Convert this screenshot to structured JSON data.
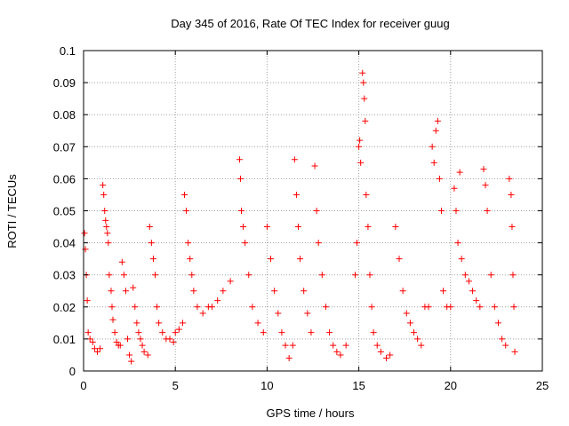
{
  "chart_data": {
    "type": "scatter",
    "title": "Day 345 of 2016, Rate Of TEC Index for receiver guug",
    "xlabel": "GPS time / hours",
    "ylabel": "ROTI / TECUs",
    "xlim": [
      0,
      25
    ],
    "ylim": [
      0,
      0.1
    ],
    "xticks": [
      0,
      5,
      10,
      15,
      20,
      25
    ],
    "yticks": [
      0,
      0.01,
      0.02,
      0.03,
      0.04,
      0.05,
      0.06,
      0.07,
      0.08,
      0.09,
      0.1
    ],
    "grid": true,
    "marker": "plus",
    "color": "#ff0000",
    "series": [
      {
        "points": [
          [
            0.05,
            0.043
          ],
          [
            0.1,
            0.038
          ],
          [
            0.15,
            0.03
          ],
          [
            0.2,
            0.022
          ],
          [
            0.25,
            0.012
          ],
          [
            0.35,
            0.01
          ],
          [
            0.5,
            0.009
          ],
          [
            0.6,
            0.007
          ],
          [
            0.75,
            0.006
          ],
          [
            0.9,
            0.007
          ],
          [
            1.05,
            0.058
          ],
          [
            1.1,
            0.055
          ],
          [
            1.15,
            0.05
          ],
          [
            1.2,
            0.047
          ],
          [
            1.25,
            0.045
          ],
          [
            1.3,
            0.043
          ],
          [
            1.35,
            0.04
          ],
          [
            1.4,
            0.03
          ],
          [
            1.5,
            0.025
          ],
          [
            1.55,
            0.02
          ],
          [
            1.6,
            0.016
          ],
          [
            1.7,
            0.012
          ],
          [
            1.8,
            0.009
          ],
          [
            1.9,
            0.008
          ],
          [
            2.0,
            0.008
          ],
          [
            2.1,
            0.034
          ],
          [
            2.2,
            0.03
          ],
          [
            2.3,
            0.025
          ],
          [
            2.4,
            0.01
          ],
          [
            2.5,
            0.005
          ],
          [
            2.6,
            0.003
          ],
          [
            2.7,
            0.026
          ],
          [
            2.8,
            0.02
          ],
          [
            2.9,
            0.015
          ],
          [
            3.0,
            0.012
          ],
          [
            3.1,
            0.01
          ],
          [
            3.2,
            0.008
          ],
          [
            3.3,
            0.006
          ],
          [
            3.5,
            0.005
          ],
          [
            3.6,
            0.045
          ],
          [
            3.7,
            0.04
          ],
          [
            3.8,
            0.035
          ],
          [
            3.9,
            0.03
          ],
          [
            4.0,
            0.02
          ],
          [
            4.1,
            0.015
          ],
          [
            4.3,
            0.012
          ],
          [
            4.5,
            0.01
          ],
          [
            4.7,
            0.01
          ],
          [
            4.9,
            0.009
          ],
          [
            5.0,
            0.012
          ],
          [
            5.2,
            0.013
          ],
          [
            5.4,
            0.015
          ],
          [
            5.5,
            0.055
          ],
          [
            5.6,
            0.05
          ],
          [
            5.7,
            0.04
          ],
          [
            5.8,
            0.035
          ],
          [
            5.9,
            0.03
          ],
          [
            6.0,
            0.025
          ],
          [
            6.2,
            0.02
          ],
          [
            6.5,
            0.018
          ],
          [
            6.8,
            0.02
          ],
          [
            7.0,
            0.02
          ],
          [
            7.3,
            0.022
          ],
          [
            7.6,
            0.025
          ],
          [
            8.0,
            0.028
          ],
          [
            8.5,
            0.066
          ],
          [
            8.55,
            0.06
          ],
          [
            8.6,
            0.05
          ],
          [
            8.7,
            0.045
          ],
          [
            8.8,
            0.04
          ],
          [
            9.0,
            0.03
          ],
          [
            9.2,
            0.02
          ],
          [
            9.5,
            0.015
          ],
          [
            9.8,
            0.012
          ],
          [
            10.0,
            0.045
          ],
          [
            10.2,
            0.035
          ],
          [
            10.4,
            0.025
          ],
          [
            10.6,
            0.018
          ],
          [
            10.8,
            0.012
          ],
          [
            11.0,
            0.008
          ],
          [
            11.2,
            0.004
          ],
          [
            11.4,
            0.008
          ],
          [
            11.5,
            0.066
          ],
          [
            11.6,
            0.055
          ],
          [
            11.7,
            0.045
          ],
          [
            11.8,
            0.035
          ],
          [
            12.0,
            0.025
          ],
          [
            12.2,
            0.018
          ],
          [
            12.4,
            0.012
          ],
          [
            12.6,
            0.064
          ],
          [
            12.7,
            0.05
          ],
          [
            12.8,
            0.04
          ],
          [
            13.0,
            0.03
          ],
          [
            13.2,
            0.02
          ],
          [
            13.4,
            0.012
          ],
          [
            13.6,
            0.008
          ],
          [
            13.8,
            0.006
          ],
          [
            14.0,
            0.005
          ],
          [
            14.3,
            0.008
          ],
          [
            14.8,
            0.03
          ],
          [
            14.9,
            0.04
          ],
          [
            15.0,
            0.07
          ],
          [
            15.05,
            0.072
          ],
          [
            15.1,
            0.065
          ],
          [
            15.2,
            0.093
          ],
          [
            15.25,
            0.09
          ],
          [
            15.3,
            0.085
          ],
          [
            15.35,
            0.078
          ],
          [
            15.4,
            0.055
          ],
          [
            15.5,
            0.045
          ],
          [
            15.6,
            0.03
          ],
          [
            15.7,
            0.02
          ],
          [
            15.8,
            0.012
          ],
          [
            16.0,
            0.008
          ],
          [
            16.2,
            0.006
          ],
          [
            16.5,
            0.004
          ],
          [
            16.7,
            0.005
          ],
          [
            17.0,
            0.045
          ],
          [
            17.2,
            0.035
          ],
          [
            17.4,
            0.025
          ],
          [
            17.6,
            0.018
          ],
          [
            17.8,
            0.015
          ],
          [
            18.0,
            0.012
          ],
          [
            18.2,
            0.01
          ],
          [
            18.4,
            0.008
          ],
          [
            18.6,
            0.02
          ],
          [
            18.8,
            0.02
          ],
          [
            19.0,
            0.07
          ],
          [
            19.1,
            0.065
          ],
          [
            19.2,
            0.075
          ],
          [
            19.3,
            0.078
          ],
          [
            19.4,
            0.06
          ],
          [
            19.5,
            0.05
          ],
          [
            19.6,
            0.025
          ],
          [
            19.8,
            0.02
          ],
          [
            20.0,
            0.02
          ],
          [
            20.2,
            0.057
          ],
          [
            20.3,
            0.05
          ],
          [
            20.4,
            0.04
          ],
          [
            20.5,
            0.062
          ],
          [
            20.6,
            0.035
          ],
          [
            20.8,
            0.03
          ],
          [
            21.0,
            0.028
          ],
          [
            21.2,
            0.025
          ],
          [
            21.4,
            0.022
          ],
          [
            21.6,
            0.02
          ],
          [
            21.8,
            0.063
          ],
          [
            21.9,
            0.058
          ],
          [
            22.0,
            0.05
          ],
          [
            22.2,
            0.03
          ],
          [
            22.4,
            0.02
          ],
          [
            22.6,
            0.015
          ],
          [
            22.8,
            0.01
          ],
          [
            23.0,
            0.008
          ],
          [
            23.2,
            0.06
          ],
          [
            23.3,
            0.055
          ],
          [
            23.35,
            0.045
          ],
          [
            23.4,
            0.03
          ],
          [
            23.45,
            0.02
          ],
          [
            23.5,
            0.006
          ]
        ]
      }
    ]
  }
}
